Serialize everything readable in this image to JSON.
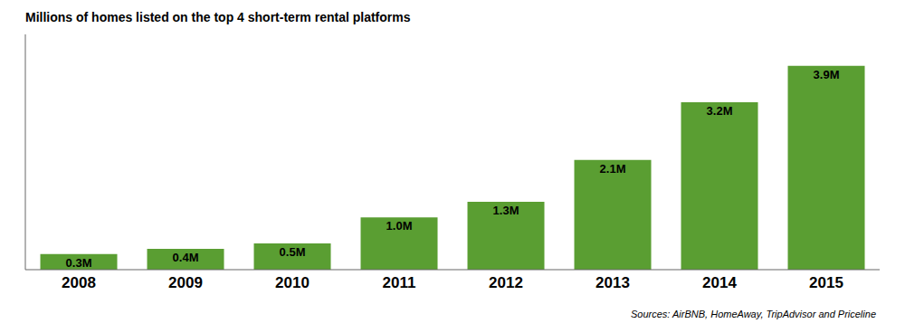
{
  "chart_data": {
    "type": "bar",
    "title": "Millions of homes listed on the top 4 short-term rental platforms",
    "categories": [
      "2008",
      "2009",
      "2010",
      "2011",
      "2012",
      "2013",
      "2014",
      "2015"
    ],
    "values": [
      0.3,
      0.4,
      0.5,
      1.0,
      1.3,
      2.1,
      3.2,
      3.9
    ],
    "value_labels": [
      "0.3M",
      "0.4M",
      "0.5M",
      "1.0M",
      "1.3M",
      "2.1M",
      "3.2M",
      "3.9M"
    ],
    "color": "#5a9e32",
    "ylim": [
      0,
      4.5
    ],
    "grid": false,
    "data_labels": true,
    "tick_labels": "x",
    "annotations": [
      "Sources: AirBNB, HomeAway, TripAdvisor and Priceline"
    ]
  }
}
